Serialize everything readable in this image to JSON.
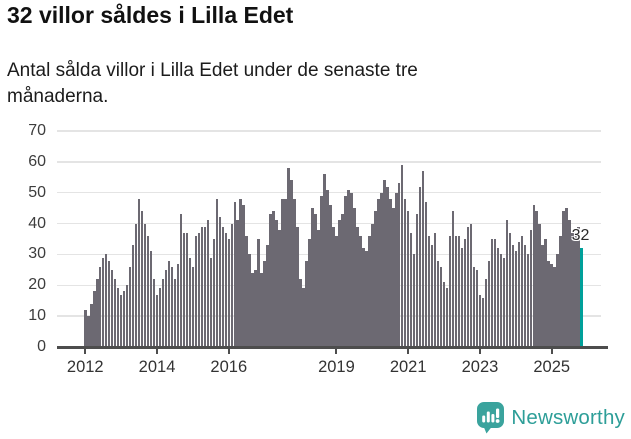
{
  "header": {
    "title": "32 villor såldes i Lilla Edet",
    "subtitle": "Antal sålda villor i Lilla Edet under de senaste tre månaderna."
  },
  "chart_data": {
    "type": "bar",
    "title": "32 villor såldes i Lilla Edet",
    "subtitle": "Antal sålda villor i Lilla Edet under de senaste tre månaderna.",
    "frequency": "monthly",
    "x_start": "2012-01",
    "x_end": "2025-11",
    "ylim": [
      0,
      70
    ],
    "yticks": [
      0,
      10,
      20,
      30,
      40,
      50,
      60,
      70
    ],
    "xtick_years": [
      2012,
      2014,
      2016,
      2019,
      2021,
      2023,
      2025
    ],
    "grid": true,
    "legend": "none",
    "values": [
      12,
      10,
      14,
      18,
      22,
      26,
      29,
      30,
      28,
      25,
      22,
      19,
      17,
      18,
      20,
      26,
      33,
      40,
      48,
      44,
      40,
      36,
      31,
      22,
      17,
      19,
      22,
      25,
      28,
      26,
      22,
      27,
      43,
      37,
      37,
      29,
      26,
      36,
      37,
      39,
      39,
      41,
      29,
      35,
      48,
      42,
      39,
      37,
      35,
      40,
      47,
      41,
      48,
      46,
      36,
      30,
      24,
      25,
      35,
      24,
      28,
      33,
      43,
      44,
      41,
      38,
      48,
      48,
      58,
      54,
      48,
      39,
      22,
      19,
      28,
      35,
      45,
      43,
      38,
      49,
      56,
      51,
      46,
      39,
      36,
      41,
      43,
      49,
      51,
      50,
      45,
      39,
      36,
      32,
      31,
      36,
      40,
      44,
      48,
      50,
      54,
      52,
      48,
      45,
      50,
      53,
      59,
      48,
      44,
      37,
      30,
      43,
      52,
      57,
      47,
      36,
      33,
      37,
      28,
      26,
      21,
      19,
      36,
      44,
      36,
      36,
      32,
      35,
      39,
      40,
      26,
      25,
      17,
      16,
      22,
      28,
      35,
      35,
      32,
      30,
      29,
      41,
      37,
      33,
      31,
      34,
      36,
      33,
      30,
      38,
      46,
      44,
      40,
      33,
      35,
      28,
      27,
      26,
      30,
      36,
      44,
      45,
      41,
      37,
      36,
      39,
      32
    ],
    "highlight_last": {
      "index": 166,
      "value": 32,
      "label": "32"
    },
    "colors": {
      "bar": "#6c6972",
      "highlight": "#00a09a",
      "grid": "#e4e4e4",
      "axis": "#4d4d4d"
    }
  },
  "footer": {
    "brand": "Newsworthy",
    "brand_color": "#2d9e98",
    "icon": "newsworthy-logo"
  }
}
